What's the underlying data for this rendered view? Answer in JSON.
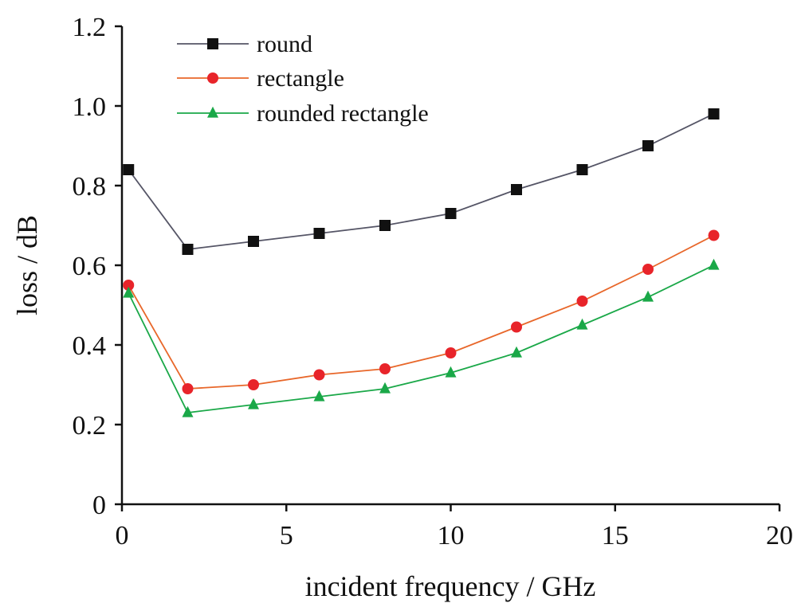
{
  "chart_data": {
    "type": "line",
    "title": "",
    "xlabel": "incident frequency / GHz",
    "ylabel": "loss / dB",
    "xlim": [
      0,
      20
    ],
    "ylim": [
      0,
      1.2
    ],
    "xticks": [
      "0",
      "5",
      "10",
      "15",
      "20"
    ],
    "yticks": [
      "0",
      "0.2",
      "0.4",
      "0.6",
      "0.8",
      "1.0",
      "1.2"
    ],
    "grid": false,
    "legend_position": "top-left",
    "series": [
      {
        "name": "round",
        "color": "#555566",
        "marker_color": "#111111",
        "marker": "square",
        "x": [
          0.2,
          2,
          4,
          6,
          8,
          10,
          12,
          14,
          16,
          18
        ],
        "y": [
          0.84,
          0.64,
          0.66,
          0.68,
          0.7,
          0.73,
          0.79,
          0.84,
          0.9,
          0.98
        ]
      },
      {
        "name": "rectangle",
        "color": "#e8672a",
        "marker_color": "#e8242a",
        "marker": "circle",
        "x": [
          0.2,
          2,
          4,
          6,
          8,
          10,
          12,
          14,
          16,
          18
        ],
        "y": [
          0.55,
          0.29,
          0.3,
          0.325,
          0.34,
          0.38,
          0.445,
          0.51,
          0.59,
          0.675
        ]
      },
      {
        "name": "rounded rectangle",
        "color": "#1aa848",
        "marker_color": "#1aa848",
        "marker": "triangle",
        "x": [
          0.2,
          2,
          4,
          6,
          8,
          10,
          12,
          14,
          16,
          18
        ],
        "y": [
          0.53,
          0.23,
          0.25,
          0.27,
          0.29,
          0.33,
          0.38,
          0.45,
          0.52,
          0.6
        ]
      }
    ]
  }
}
